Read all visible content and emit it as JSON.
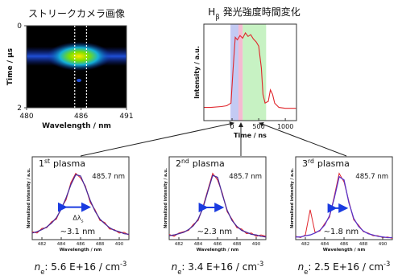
{
  "chart_data": [
    {
      "type": "image",
      "title": "ストリークカメラ画像",
      "x_label": "Wavelength / nm",
      "y_label": "Time / μs",
      "xlim": [
        480,
        491
      ],
      "xticks": [
        480,
        486,
        491
      ],
      "ylim": [
        2,
        0
      ],
      "yticks": [
        0,
        2
      ],
      "markers": [
        485.3,
        486.6
      ]
    },
    {
      "type": "line",
      "title_symbol": "H",
      "title_subscript": "β",
      "title_text": "発光強度時間変化",
      "x_label": "Time / ns",
      "y_label": "Intensity / a.u.",
      "xlim": [
        -530,
        1210
      ],
      "xticks": [
        0,
        500,
        1000
      ],
      "ylim": [
        0,
        1.1
      ],
      "x": [
        -530,
        -400,
        -200,
        -100,
        -20,
        20,
        60,
        100,
        150,
        200,
        250,
        300,
        350,
        400,
        450,
        500,
        550,
        580,
        620,
        680,
        720,
        760,
        800,
        880,
        1000,
        1200
      ],
      "series": [
        {
          "color": "#e0252b",
          "values": [
            0.15,
            0.15,
            0.16,
            0.17,
            0.2,
            0.6,
            0.95,
            0.92,
            0.97,
            0.94,
            1.0,
            0.96,
            0.98,
            0.93,
            0.9,
            0.85,
            0.6,
            0.3,
            0.2,
            0.22,
            0.35,
            0.3,
            0.2,
            0.15,
            0.14,
            0.14
          ]
        }
      ],
      "regions": [
        {
          "from": -30,
          "to": 120,
          "color": "#b4bdf0"
        },
        {
          "from": 120,
          "to": 200,
          "color": "#f3a9c6"
        },
        {
          "from": 200,
          "to": 640,
          "color": "#b9efb4"
        }
      ]
    },
    {
      "type": "spectrum",
      "title_number": "1",
      "title_ordinal": "st",
      "title_text": "plasma",
      "x_label": "Wavelength / nm",
      "y_label": "Normalized intensity / a.u.",
      "xlim": [
        481,
        491
      ],
      "xticks": [
        482,
        484,
        486,
        488,
        490
      ],
      "ylim": [
        0,
        1.25
      ],
      "peak": 485.7,
      "peak_label": "485.7 nm",
      "fwhm": 3.1,
      "fwhm_label": "∼3.1 nm",
      "width_symbol": "Δλ",
      "width_subscript": "s",
      "density_symbol": "n",
      "density_subscript": "e",
      "density_value": ": 5.6 E+16 / cm",
      "density_exponent": "-3",
      "x": [
        481,
        481.5,
        482,
        482.5,
        483,
        483.5,
        484,
        484.5,
        485,
        485.5,
        486,
        486.5,
        487,
        487.5,
        488,
        488.5,
        489,
        489.5,
        490,
        490.5,
        491
      ],
      "series": [
        {
          "color": "#e0252b",
          "values": [
            0.12,
            0.1,
            0.17,
            0.18,
            0.27,
            0.31,
            0.48,
            0.6,
            0.86,
            1.0,
            0.93,
            0.81,
            0.56,
            0.45,
            0.29,
            0.26,
            0.16,
            0.15,
            0.1,
            0.11,
            0.07
          ]
        },
        {
          "color": "#4a2a9a",
          "values": [
            0.1,
            0.12,
            0.15,
            0.19,
            0.25,
            0.33,
            0.46,
            0.63,
            0.83,
            0.98,
            0.96,
            0.79,
            0.59,
            0.43,
            0.31,
            0.24,
            0.18,
            0.14,
            0.12,
            0.09,
            0.08
          ]
        }
      ]
    },
    {
      "type": "spectrum",
      "title_number": "2",
      "title_ordinal": "nd",
      "title_text": "plasma",
      "x_label": "Wavelength / nm",
      "y_label": "Normalized intensity / a.u.",
      "xlim": [
        481,
        491
      ],
      "xticks": [
        482,
        484,
        486,
        488,
        490
      ],
      "ylim": [
        0,
        1.25
      ],
      "peak": 485.7,
      "peak_label": "485.7 nm",
      "fwhm": 2.3,
      "fwhm_label": "∼2.3 nm",
      "density_symbol": "n",
      "density_subscript": "e",
      "density_value": ": 3.4 E+16 / cm",
      "density_exponent": "-3",
      "x": [
        481,
        481.5,
        482,
        482.5,
        483,
        483.5,
        484,
        484.5,
        485,
        485.5,
        486,
        486.5,
        487,
        487.5,
        488,
        488.5,
        489,
        489.5,
        490,
        490.5,
        491
      ],
      "series": [
        {
          "color": "#e0252b",
          "values": [
            0.08,
            0.05,
            0.1,
            0.12,
            0.14,
            0.23,
            0.29,
            0.5,
            0.75,
            1.0,
            0.9,
            0.7,
            0.42,
            0.31,
            0.18,
            0.16,
            0.09,
            0.1,
            0.05,
            0.07,
            0.05
          ]
        },
        {
          "color": "#4a2a9a",
          "values": [
            0.06,
            0.07,
            0.09,
            0.11,
            0.15,
            0.21,
            0.31,
            0.48,
            0.73,
            0.97,
            0.94,
            0.68,
            0.44,
            0.29,
            0.2,
            0.14,
            0.11,
            0.08,
            0.07,
            0.05,
            0.04
          ]
        }
      ]
    },
    {
      "type": "spectrum",
      "title_number": "3",
      "title_ordinal": "rd",
      "title_text": "plasma",
      "x_label": "Wavelength / nm",
      "y_label": "Normalized intensity / a.u.",
      "xlim": [
        481,
        491
      ],
      "xticks": [
        482,
        484,
        486,
        488,
        490
      ],
      "ylim": [
        0,
        1.25
      ],
      "peak": 485.7,
      "peak_label": "485.7 nm",
      "fwhm": 1.8,
      "fwhm_label": "∼1.8 nm",
      "density_symbol": "n",
      "density_subscript": "e",
      "density_value": ": 2.5 E+16 / cm",
      "density_exponent": "-3",
      "x": [
        481,
        481.5,
        482,
        482.5,
        483,
        483.5,
        484,
        484.5,
        485,
        485.5,
        486,
        486.5,
        487,
        487.5,
        488,
        488.5,
        489,
        489.5,
        490,
        490.5,
        491
      ],
      "series": [
        {
          "color": "#e0252b",
          "values": [
            0.05,
            0.03,
            0.07,
            0.45,
            0.11,
            0.13,
            0.24,
            0.34,
            0.66,
            1.0,
            0.87,
            0.58,
            0.3,
            0.22,
            0.12,
            0.1,
            0.06,
            0.06,
            0.03,
            0.04,
            0.02
          ]
        },
        {
          "color": "#5a33c8",
          "values": [
            0.04,
            0.04,
            0.06,
            0.07,
            0.1,
            0.14,
            0.22,
            0.36,
            0.63,
            0.95,
            0.9,
            0.56,
            0.32,
            0.2,
            0.13,
            0.09,
            0.07,
            0.05,
            0.04,
            0.03,
            0.03
          ]
        }
      ]
    }
  ]
}
